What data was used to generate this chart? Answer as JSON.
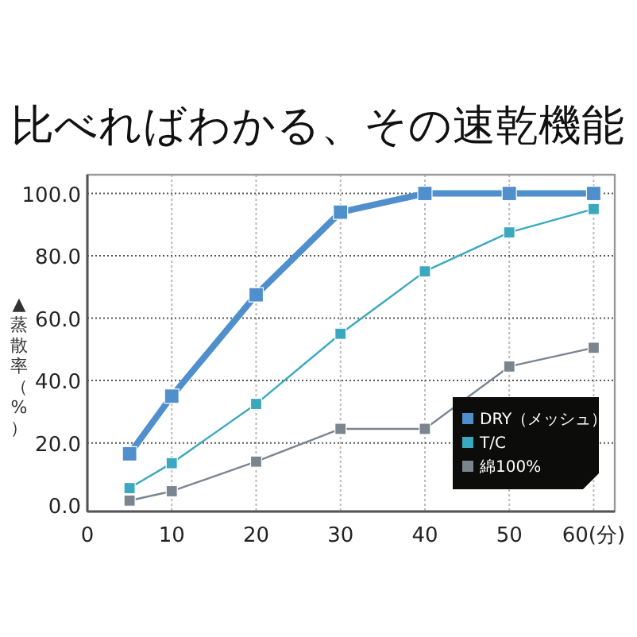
{
  "chart_data": {
    "type": "line",
    "title": "比べればわかる、その速乾機能",
    "ylabel": "▲蒸散率（%）",
    "x": [
      5,
      10,
      20,
      30,
      40,
      50,
      60
    ],
    "xlim": [
      0,
      62.5
    ],
    "xticks": [
      0,
      10,
      20,
      30,
      40,
      50,
      {
        "value": 60,
        "label": "60(分)"
      }
    ],
    "ylim": [
      -2,
      106
    ],
    "yticks": [
      {
        "value": 0,
        "label": "0.0"
      },
      {
        "value": 20,
        "label": "20.0"
      },
      {
        "value": 40,
        "label": "40.0"
      },
      {
        "value": 60,
        "label": "60.0"
      },
      {
        "value": 80,
        "label": "80.0"
      },
      {
        "value": 100,
        "label": "100.0"
      }
    ],
    "grid": true,
    "legend": "bottom right",
    "marker": "square",
    "line_style": "solid",
    "series": [
      {
        "name": "DRY（メッシュ）",
        "color": "#4f8fcc",
        "values": [
          16.5,
          35,
          67.5,
          94,
          100,
          100,
          100
        ]
      },
      {
        "name": "T/C",
        "color": "#3aa8bf",
        "values": [
          5.5,
          13.5,
          32.5,
          55,
          75,
          87.5,
          95
        ]
      },
      {
        "name": "綿100%",
        "color": "#7a8590",
        "values": [
          1.5,
          4.5,
          14,
          24.5,
          24.5,
          44.5,
          50.5
        ]
      }
    ]
  }
}
